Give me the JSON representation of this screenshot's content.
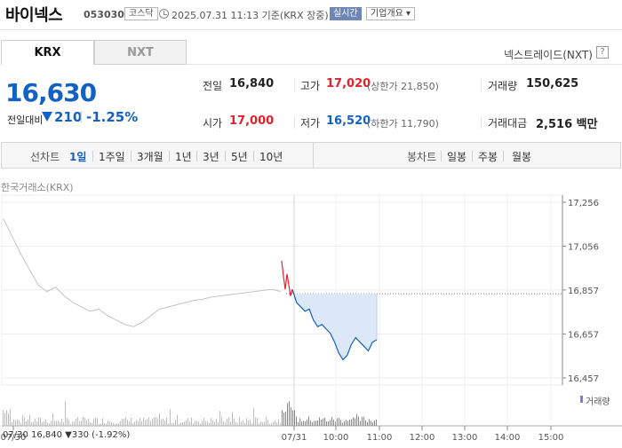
{
  "header": {
    "name": "바이넥스",
    "code": "053030",
    "market": "코스닥",
    "timestamp": "2025.07.31 11:13 기준(KRX 장중)",
    "realtime": "실시간",
    "company_overview": "기업개요"
  },
  "tabs": {
    "krx": "KRX",
    "nxt": "NXT"
  },
  "nextrade_link": "넥스트레이드(NXT)",
  "price": {
    "current": "16,630",
    "prev_label": "전일대비",
    "change_amount": "210",
    "change_rate": "-1.25%",
    "direction": "down"
  },
  "quotes": {
    "prev_close": {
      "label": "전일",
      "value": "16,840"
    },
    "high": {
      "label": "고가",
      "value": "17,020",
      "sub": "(상한가 21,850)"
    },
    "volume": {
      "label": "거래량",
      "value": "150,625"
    },
    "open": {
      "label": "시가",
      "value": "17,000"
    },
    "low": {
      "label": "저가",
      "value": "16,520",
      "sub": "(하한가 11,790)"
    },
    "trade_value": {
      "label": "거래대금",
      "value": "2,516 백만"
    }
  },
  "period_bar": {
    "line_chart_label": "선차트",
    "line_periods": [
      "1일",
      "1주일",
      "3개월",
      "1년",
      "3년",
      "5년",
      "10년"
    ],
    "selected": "1일",
    "candle_label": "봉차트",
    "candle_periods": [
      "일봉",
      "주봉",
      "월봉"
    ]
  },
  "chart_caption": "한국거래소(KRX)",
  "volume_label": "거래량",
  "bottom_info": "07/30 16,840 ▼330 (-1.92%)",
  "colors": {
    "up": "#e3212d",
    "down": "#1261c4",
    "prev_day": "#c4c4c4",
    "volume": "#8a79c7",
    "fill": "#dce8f8"
  },
  "chart_data": {
    "type": "line",
    "y_ticks": [
      "17,256",
      "17,056",
      "16,857",
      "16,657",
      "16,457"
    ],
    "y_tick_values": [
      17256,
      17056,
      16857,
      16657,
      16457
    ],
    "ylim": [
      16457,
      17256
    ],
    "x_labels": [
      "07/30",
      "07/31",
      "10:00",
      "11:00",
      "12:00",
      "13:00",
      "14:00",
      "15:00"
    ],
    "reference_line": 16840,
    "series": [
      {
        "values": [
          17180,
          17100,
          17020,
          16950,
          16880,
          16850,
          16870,
          16830,
          16800,
          16780,
          16760,
          16770,
          16740,
          16720,
          16700,
          16690,
          16710,
          16740,
          16770,
          16780,
          16790,
          16800,
          16810,
          16815,
          16825,
          16830,
          16835,
          16840,
          16845,
          16850,
          16855,
          16860,
          16850
        ]
      },
      {
        "values": [
          16990,
          16920,
          16860,
          16930,
          16880,
          16830,
          16860
        ]
      },
      {
        "values": [
          16860,
          16800,
          16780,
          16760,
          16770,
          16720,
          16690,
          16700,
          16680,
          16660,
          16620,
          16570,
          16540,
          16560,
          16610,
          16640,
          16620,
          16600,
          16580,
          16620,
          16630
        ]
      }
    ]
  }
}
